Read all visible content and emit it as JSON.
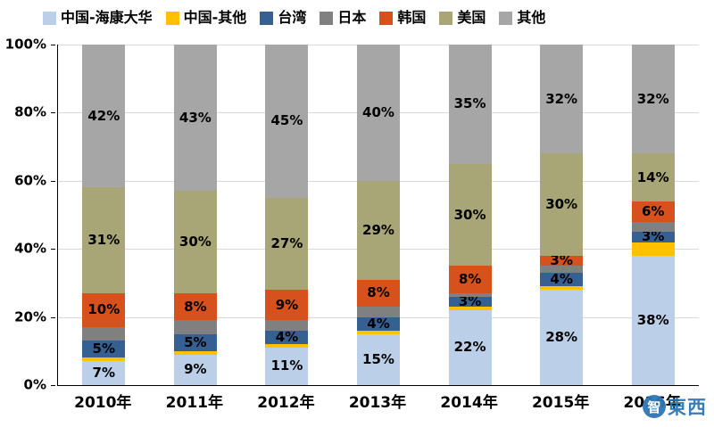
{
  "chart_data": {
    "type": "bar",
    "stacked": true,
    "percent": true,
    "title": "",
    "xlabel": "",
    "ylabel": "",
    "legend_position": "top",
    "categories": [
      "2010年",
      "2011年",
      "2012年",
      "2013年",
      "2014年",
      "2015年",
      "2016年"
    ],
    "series": [
      {
        "name": "中国-海康大华",
        "color": "#BCCFE8",
        "values": [
          7,
          9,
          11,
          15,
          22,
          28,
          38
        ],
        "labels": [
          "7%",
          "9%",
          "11%",
          "15%",
          "22%",
          "28%",
          "38%"
        ]
      },
      {
        "name": "中国-其他",
        "color": "#FFC000",
        "values": [
          1,
          1,
          1,
          1,
          1,
          1,
          4
        ],
        "labels": [
          null,
          null,
          null,
          null,
          null,
          null,
          null
        ]
      },
      {
        "name": "台湾",
        "color": "#376092",
        "values": [
          5,
          5,
          4,
          4,
          3,
          4,
          3
        ],
        "labels": [
          "5%",
          "5%",
          "4%",
          "4%",
          "3%",
          "4%",
          "3%"
        ]
      },
      {
        "name": "日本",
        "color": "#808080",
        "values": [
          4,
          4,
          3,
          3,
          1,
          2,
          3
        ],
        "labels": [
          null,
          null,
          null,
          null,
          null,
          null,
          null
        ]
      },
      {
        "name": "韩国",
        "color": "#D6511C",
        "values": [
          10,
          8,
          9,
          8,
          8,
          3,
          6
        ],
        "labels": [
          "10%",
          "8%",
          "9%",
          "8%",
          "8%",
          "3%",
          "6%"
        ]
      },
      {
        "name": "美国",
        "color": "#A8A577",
        "values": [
          31,
          30,
          27,
          29,
          30,
          30,
          14
        ],
        "labels": [
          "31%",
          "30%",
          "27%",
          "29%",
          "30%",
          "30%",
          "14%"
        ]
      },
      {
        "name": "其他",
        "color": "#A6A6A6",
        "values": [
          42,
          43,
          45,
          40,
          35,
          32,
          32
        ],
        "labels": [
          "42%",
          "43%",
          "45%",
          "40%",
          "35%",
          "32%",
          "32%"
        ]
      }
    ],
    "y_axis": {
      "min": 0,
      "max": 100,
      "ticks": [
        "0%",
        "20%",
        "40%",
        "60%",
        "80%",
        "100%"
      ],
      "grid": true
    }
  },
  "watermark": {
    "logo_char": "智",
    "text": "東西"
  }
}
